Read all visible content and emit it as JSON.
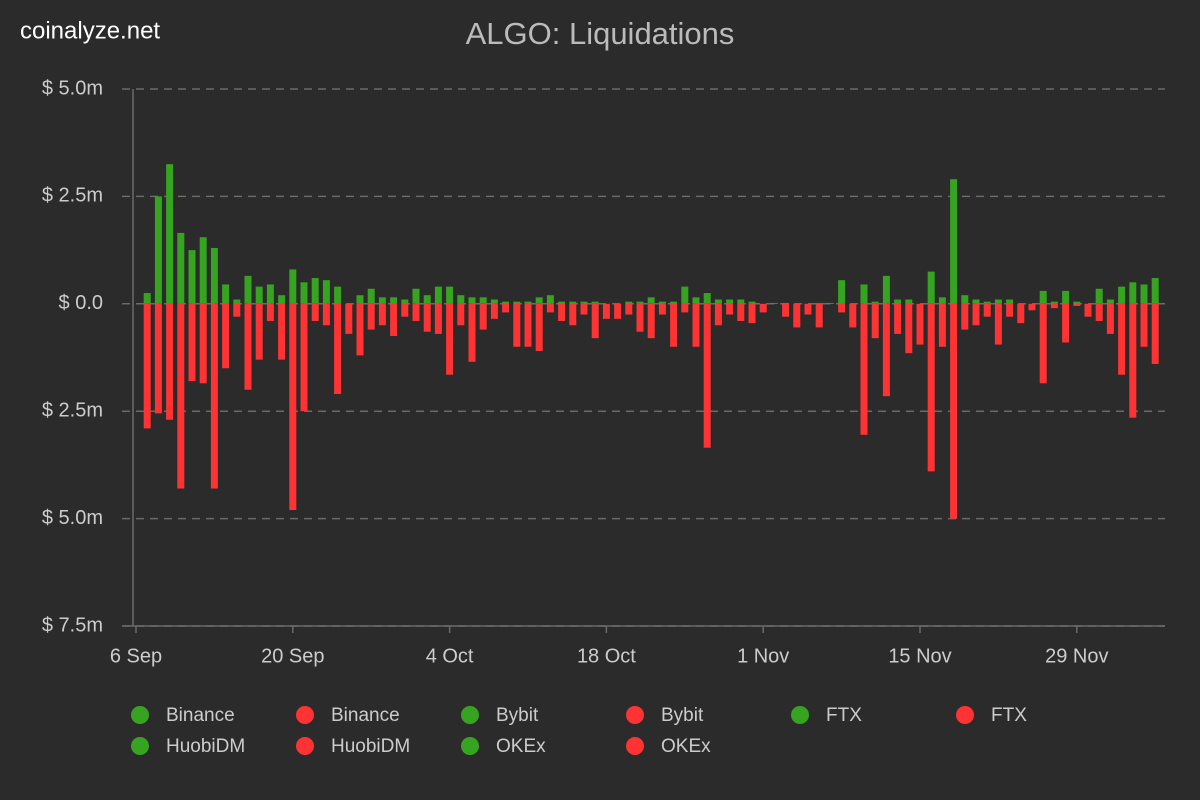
{
  "site": "coinalyze.net",
  "chart_data": {
    "type": "bar",
    "title": "ALGO: Liquidations",
    "categories": [
      "6 Sep",
      "7 Sep",
      "8 Sep",
      "9 Sep",
      "10 Sep",
      "11 Sep",
      "12 Sep",
      "13 Sep",
      "14 Sep",
      "15 Sep",
      "16 Sep",
      "17 Sep",
      "18 Sep",
      "19 Sep",
      "20 Sep",
      "21 Sep",
      "22 Sep",
      "23 Sep",
      "24 Sep",
      "25 Sep",
      "26 Sep",
      "27 Sep",
      "28 Sep",
      "29 Sep",
      "30 Sep",
      "1 Oct",
      "2 Oct",
      "3 Oct",
      "4 Oct",
      "5 Oct",
      "6 Oct",
      "7 Oct",
      "8 Oct",
      "9 Oct",
      "10 Oct",
      "11 Oct",
      "12 Oct",
      "13 Oct",
      "14 Oct",
      "15 Oct",
      "16 Oct",
      "17 Oct",
      "18 Oct",
      "19 Oct",
      "20 Oct",
      "21 Oct",
      "22 Oct",
      "23 Oct",
      "24 Oct",
      "25 Oct",
      "26 Oct",
      "27 Oct",
      "28 Oct",
      "29 Oct",
      "30 Oct",
      "31 Oct",
      "1 Nov",
      "2 Nov",
      "3 Nov",
      "4 Nov",
      "5 Nov",
      "6 Nov",
      "7 Nov",
      "8 Nov",
      "9 Nov",
      "10 Nov",
      "11 Nov",
      "12 Nov",
      "13 Nov",
      "14 Nov",
      "15 Nov",
      "16 Nov",
      "17 Nov",
      "18 Nov",
      "19 Nov",
      "20 Nov",
      "21 Nov",
      "22 Nov",
      "23 Nov",
      "24 Nov",
      "25 Nov",
      "26 Nov",
      "27 Nov",
      "28 Nov",
      "29 Nov",
      "30 Nov",
      "1 Dec",
      "2 Dec",
      "3 Dec",
      "4 Dec",
      "5 Dec"
    ],
    "series": [
      {
        "color": "#36a420",
        "values": [
          0.25,
          2.5,
          3.25,
          1.65,
          1.25,
          1.55,
          1.3,
          0.45,
          0.1,
          0.65,
          0.4,
          0.45,
          0.2,
          0.8,
          0.5,
          0.6,
          0.55,
          0.4,
          0,
          0.2,
          0.35,
          0.15,
          0.15,
          0.1,
          0.35,
          0.2,
          0.4,
          0.4,
          0.2,
          0.15,
          0.15,
          0.1,
          0.05,
          0.05,
          0.05,
          0.15,
          0.2,
          0.05,
          0.05,
          0.05,
          0.05,
          0,
          0,
          0.05,
          0.05,
          0.15,
          0.05,
          0.05,
          0.4,
          0.15,
          0.25,
          0.1,
          0.1,
          0.1,
          0.05,
          0,
          0.02,
          0.02,
          0,
          0,
          0.02,
          0.02,
          0.55,
          0,
          0.45,
          0.05,
          0.65,
          0.1,
          0.1,
          0,
          0.75,
          0.15,
          2.9,
          0.2,
          0.1,
          0.05,
          0.1,
          0.1,
          0,
          0,
          0.3,
          0.05,
          0.3,
          0.05,
          0,
          0.35,
          0.1,
          0.4,
          0.5,
          0.45,
          0.6
        ]
      },
      {
        "color": "#ff3333",
        "values": [
          -2.9,
          -2.55,
          -2.7,
          -4.3,
          -1.8,
          -1.85,
          -4.3,
          -1.5,
          -0.3,
          -2.0,
          -1.3,
          -0.4,
          -1.3,
          -4.8,
          -2.5,
          -0.4,
          -0.5,
          -2.1,
          -0.7,
          -1.2,
          -0.6,
          -0.5,
          -0.75,
          -0.3,
          -0.4,
          -0.65,
          -0.7,
          -1.65,
          -0.5,
          -1.35,
          -0.6,
          -0.35,
          -0.2,
          -1.0,
          -1.0,
          -1.1,
          -0.2,
          -0.4,
          -0.5,
          -0.25,
          -0.8,
          -0.35,
          -0.35,
          -0.25,
          -0.65,
          -0.8,
          -0.25,
          -1.0,
          -0.2,
          -1.0,
          -3.35,
          -0.5,
          -0.25,
          -0.4,
          -0.45,
          -0.2,
          0,
          -0.3,
          -0.55,
          -0.25,
          -0.55,
          0,
          -0.2,
          -0.55,
          -3.05,
          -0.8,
          -2.15,
          -0.7,
          -1.15,
          -0.95,
          -3.9,
          -1.0,
          -5.0,
          -0.6,
          -0.5,
          -0.3,
          -0.95,
          -0.3,
          -0.45,
          -0.15,
          -1.85,
          -0.1,
          -0.9,
          -0.05,
          -0.3,
          -0.4,
          -0.7,
          -1.65,
          -2.65,
          -1.0,
          -1.4
        ]
      }
    ],
    "legend": [
      {
        "name": "Binance",
        "color": "#36a420"
      },
      {
        "name": "Binance",
        "color": "#ff3333"
      },
      {
        "name": "Bybit",
        "color": "#36a420"
      },
      {
        "name": "Bybit",
        "color": "#ff3333"
      },
      {
        "name": "FTX",
        "color": "#36a420"
      },
      {
        "name": "FTX",
        "color": "#ff3333"
      },
      {
        "name": "HuobiDM",
        "color": "#36a420"
      },
      {
        "name": "HuobiDM",
        "color": "#ff3333"
      },
      {
        "name": "OKEx",
        "color": "#36a420"
      },
      {
        "name": "OKEx",
        "color": "#ff3333"
      }
    ],
    "ylim": [
      -7.5,
      5
    ],
    "yticks": [
      {
        "value": 5,
        "label": "$ 5.0m"
      },
      {
        "value": 2.5,
        "label": "$ 2.5m"
      },
      {
        "value": 0,
        "label": "$ 0.0"
      },
      {
        "value": -2.5,
        "label": "$ 2.5m"
      },
      {
        "value": -5,
        "label": "$ 5.0m"
      },
      {
        "value": -7.5,
        "label": "$ 7.5m"
      }
    ],
    "xticks": [
      "6 Sep",
      "20 Sep",
      "4 Oct",
      "18 Oct",
      "1 Nov",
      "15 Nov",
      "29 Nov"
    ],
    "grid": true
  }
}
